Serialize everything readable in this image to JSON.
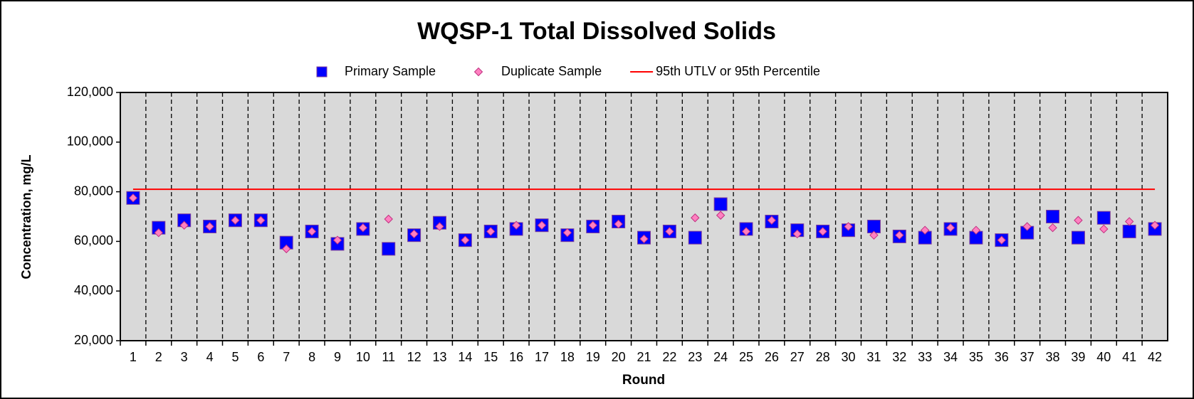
{
  "chart_data": {
    "type": "scatter",
    "title": "WQSP-1  Total Dissolved Solids",
    "x_label": "Round",
    "y_label": "Concentration, mg/L",
    "categories": [
      "1",
      "2",
      "3",
      "4",
      "5",
      "6",
      "7",
      "8",
      "9",
      "10",
      "11",
      "12",
      "13",
      "14",
      "15",
      "16",
      "17",
      "18",
      "19",
      "20",
      "21",
      "22",
      "23",
      "24",
      "25",
      "26",
      "27",
      "28",
      "30",
      "31",
      "32",
      "33",
      "34",
      "35",
      "36",
      "37",
      "38",
      "39",
      "40",
      "41",
      "42"
    ],
    "series": [
      {
        "name": "Primary Sample",
        "color": "#0000ff",
        "marker": "square",
        "values": [
          77500,
          65500,
          68500,
          66000,
          68500,
          68500,
          59500,
          64000,
          59000,
          65000,
          57000,
          62500,
          67500,
          60500,
          64000,
          65000,
          66500,
          62500,
          66000,
          68000,
          61500,
          64000,
          61500,
          75000,
          65000,
          68000,
          64500,
          64000,
          64500,
          66000,
          62000,
          61500,
          65000,
          61500,
          60500,
          63500,
          70000,
          61500,
          69500,
          64000,
          65000
        ]
      },
      {
        "name": "Duplicate Sample",
        "color": "#ff80c0",
        "marker": "diamond",
        "values": [
          77500,
          63500,
          66500,
          66000,
          68500,
          68500,
          57000,
          64000,
          60500,
          65500,
          69000,
          63000,
          66000,
          60500,
          64000,
          66500,
          66500,
          63500,
          66500,
          67000,
          61000,
          64000,
          69500,
          70500,
          64000,
          68500,
          63000,
          64000,
          66000,
          62500,
          62500,
          64500,
          65500,
          64500,
          60500,
          66000,
          65500,
          68500,
          65000,
          68000,
          66500
        ]
      }
    ],
    "threshold": {
      "name": "95th UTLV or 95th Percentile",
      "value": 81000,
      "color": "#ff0000"
    },
    "ylim": [
      20000,
      120000
    ],
    "yticks": [
      {
        "value": 20000,
        "label": "20,000"
      },
      {
        "value": 40000,
        "label": "40,000"
      },
      {
        "value": 60000,
        "label": "60,000"
      },
      {
        "value": 80000,
        "label": "80,000"
      },
      {
        "value": 100000,
        "label": "100,000"
      },
      {
        "value": 120000,
        "label": "120,000"
      }
    ],
    "grid": true,
    "legend": "top"
  }
}
